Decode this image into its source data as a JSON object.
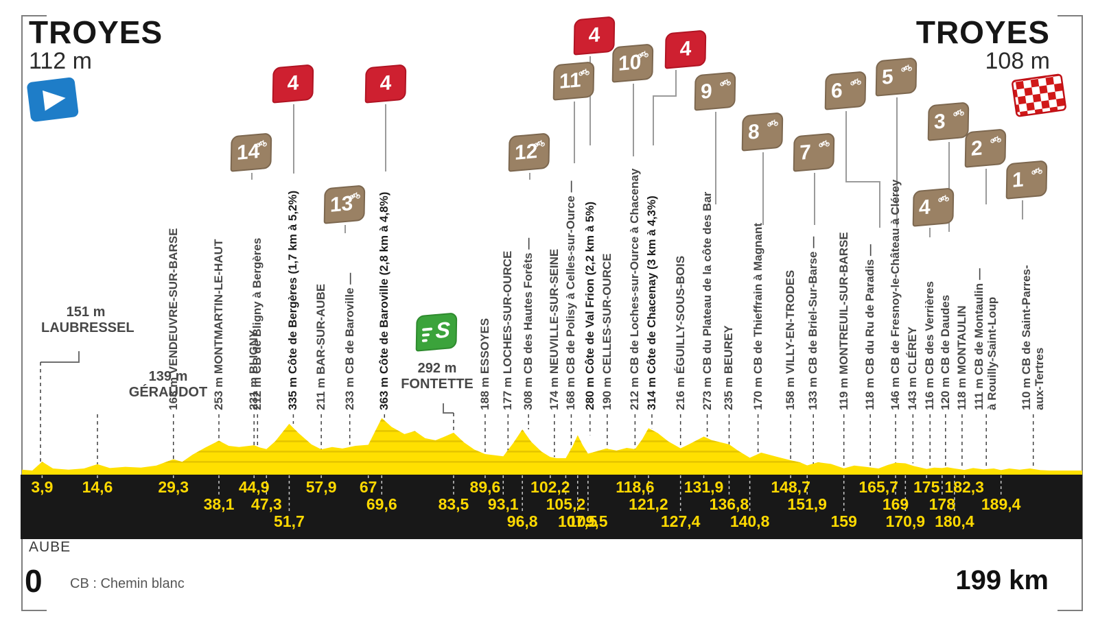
{
  "header": {
    "start": {
      "city": "TROYES",
      "altitude": "112 m"
    },
    "finish": {
      "city": "TROYES",
      "altitude": "108 m"
    }
  },
  "footer": {
    "department": "AUBE",
    "km_zero": "0",
    "legend": "CB : Chemin blanc",
    "distance_total": "199 km"
  },
  "colors": {
    "profile_yellow": "#ffe000",
    "profile_grid": "#e4c400",
    "band_black": "#181818",
    "band_number_yellow": "#ffd900",
    "sector_badge_brown": "#9a8164",
    "climb_badge_red": "#ce2030",
    "sprint_badge_green": "#3ba33b",
    "start_flag_blue": "#1e7dc8",
    "finish_flag_red": "#d01818",
    "label_grey": "#474747"
  },
  "chart_data": {
    "type": "area",
    "title": "Stage profile TROYES - TROYES",
    "x_unit": "km",
    "y_unit": "m",
    "x_range": [
      0,
      199
    ],
    "start": {
      "km": 0,
      "alt_m": 112
    },
    "finish": {
      "km": 199,
      "alt_m": 108
    },
    "waypoints": [
      {
        "km": 3.9,
        "km_label": "3,9",
        "alt": "151 m",
        "name": "LAUBRESSEL",
        "kind": "place",
        "row": 1,
        "orientation": "horizontal"
      },
      {
        "km": 14.6,
        "km_label": "14,6",
        "alt": "139 m",
        "name": "GÉRAUDOT",
        "kind": "place",
        "row": 1,
        "orientation": "horizontal"
      },
      {
        "km": 29.3,
        "km_label": "29,3",
        "alt": "163 m",
        "name": "VENDEUVRE-SUR-BARSE",
        "kind": "place",
        "row": 1
      },
      {
        "km": 38.1,
        "km_label": "38,1",
        "alt": "253 m",
        "name": "MONTMARTIN-LE-HAUT",
        "kind": "place",
        "row": 2
      },
      {
        "km": 44.9,
        "km_label": "44,9",
        "alt": "231 m",
        "name": "BLIGNY",
        "kind": "place",
        "row": 1
      },
      {
        "km": 47.3,
        "km_label": "47,3",
        "alt": "212 m",
        "name": "CB de Bligny à Bergères",
        "kind": "cb",
        "row": 2
      },
      {
        "km": 51.7,
        "km_label": "51,7",
        "alt": "335 m",
        "name": "Côte de Bergères (1,7 km à 5,2%)",
        "kind": "climb",
        "row": 3
      },
      {
        "km": 57.9,
        "km_label": "57,9",
        "alt": "211 m",
        "name": "BAR-SUR-AUBE",
        "kind": "place",
        "row": 1
      },
      {
        "km": 67,
        "km_label": "67",
        "alt": "233 m",
        "name": "CB de Baroville —",
        "kind": "cb",
        "row": 1
      },
      {
        "km": 69.6,
        "km_label": "69,6",
        "alt": "363 m",
        "name": "Côte de Baroville (2,8 km à 4,8%)",
        "kind": "climb",
        "row": 2
      },
      {
        "km": 83.5,
        "km_label": "83,5",
        "alt": "292 m",
        "name": "FONTETTE",
        "kind": "sprint",
        "row": 2,
        "orientation": "horizontal"
      },
      {
        "km": 89.6,
        "km_label": "89,6",
        "alt": "188 m",
        "name": "ESSOYES",
        "kind": "place",
        "row": 1
      },
      {
        "km": 93.1,
        "km_label": "93,1",
        "alt": "177 m",
        "name": "LOCHES-SUR-OURCE",
        "kind": "place",
        "row": 2
      },
      {
        "km": 96.8,
        "km_label": "96,8",
        "alt": "308 m",
        "name": "CB des Hautes Forêts —",
        "kind": "cb",
        "row": 3
      },
      {
        "km": 102.2,
        "km_label": "102,2",
        "alt": "174 m",
        "name": "NEUVILLE-SUR-SEINE",
        "kind": "place",
        "row": 1
      },
      {
        "km": 105.2,
        "km_label": "105,2",
        "alt": "168 m",
        "name": "CB de Polisy à Celles-sur-Ource —",
        "kind": "cb",
        "row": 2
      },
      {
        "km": 107.5,
        "km_label": "107,5",
        "alt": "280 m",
        "name": "Côte de Val Frion (2,2 km à 5%)",
        "kind": "climb",
        "row": 3
      },
      {
        "km": 109.5,
        "km_label": "109,5",
        "alt": "190 m",
        "name": "CELLES-SUR-OURCE",
        "kind": "place",
        "row": 3
      },
      {
        "km": 118.6,
        "km_label": "118,6",
        "alt": "212 m",
        "name": "CB de Loches-sur-Ource à Chacenay",
        "kind": "cb",
        "row": 1
      },
      {
        "km": 121.2,
        "km_label": "121,2",
        "alt": "314 m",
        "name": "Côte de Chacenay (3 km à 4,3%)",
        "kind": "climb",
        "row": 2
      },
      {
        "km": 127.4,
        "km_label": "127,4",
        "alt": "216 m",
        "name": "ÉGUILLY-SOUS-BOIS",
        "kind": "place",
        "row": 3
      },
      {
        "km": 131.9,
        "km_label": "131,9",
        "alt": "273 m",
        "name": "CB du Plateau de la côte des Bar",
        "kind": "cb",
        "row": 1
      },
      {
        "km": 136.8,
        "km_label": "136,8",
        "alt": "235 m",
        "name": "BEUREY",
        "kind": "place",
        "row": 2
      },
      {
        "km": 140.8,
        "km_label": "140,8",
        "alt": "170 m",
        "name": "CB de Thieffrain à Magnant",
        "kind": "cb",
        "row": 3
      },
      {
        "km": 148.7,
        "km_label": "148,7",
        "alt": "158 m",
        "name": "VILLY-EN-TRODES",
        "kind": "place",
        "row": 1
      },
      {
        "km": 151.9,
        "km_label": "151,9",
        "alt": "133 m",
        "name": "CB de Briel-Sur-Barse —",
        "kind": "cb",
        "row": 2
      },
      {
        "km": 159,
        "km_label": "159",
        "alt": "119 m",
        "name": "MONTREUIL-SUR-BARSE",
        "kind": "place",
        "row": 3
      },
      {
        "km": 165.7,
        "km_label": "165,7",
        "alt": "118 m",
        "name": "CB du Ru de Paradis —",
        "kind": "cb",
        "row": 1
      },
      {
        "km": 169,
        "km_label": "169",
        "alt": "146 m",
        "name": "CB de Fresnoy-le-Château à Clérey",
        "kind": "cb",
        "row": 2
      },
      {
        "km": 170.9,
        "km_label": "170,9",
        "alt": "143 m",
        "name": "CLÉREY",
        "kind": "place",
        "row": 3
      },
      {
        "km": 175,
        "km_label": "175",
        "alt": "116 m",
        "name": "CB des Verrières",
        "kind": "cb",
        "row": 1
      },
      {
        "km": 178,
        "km_label": "178",
        "alt": "120 m",
        "name": "CB de Daudes",
        "kind": "cb",
        "row": 2
      },
      {
        "km": 180.4,
        "km_label": "180,4",
        "alt": "118 m",
        "name": "MONTAULIN",
        "kind": "place",
        "row": 3
      },
      {
        "km": 182.3,
        "km_label": "182,3",
        "alt": "111 m",
        "name": "CB de Montaulin —",
        "name2": "à Rouilly-Saint-Loup",
        "kind": "cb",
        "row": 1
      },
      {
        "km": 189.4,
        "km_label": "189,4",
        "alt": "110 m",
        "name": "CB de Saint-Parres-",
        "name2": "aux-Tertres",
        "kind": "cb",
        "row": 2
      }
    ],
    "badges": {
      "sectors": [
        {
          "num": "14"
        },
        {
          "num": "13"
        },
        {
          "num": "12"
        },
        {
          "num": "11"
        },
        {
          "num": "10"
        },
        {
          "num": "9"
        },
        {
          "num": "8"
        },
        {
          "num": "7"
        },
        {
          "num": "6"
        },
        {
          "num": "5"
        },
        {
          "num": "4"
        },
        {
          "num": "3"
        },
        {
          "num": "2"
        },
        {
          "num": "1"
        }
      ],
      "climbs": [
        {
          "cat": "4"
        },
        {
          "cat": "4"
        },
        {
          "cat": "4"
        },
        {
          "cat": "4"
        }
      ],
      "sprint": {
        "letter": "S"
      }
    },
    "profile": [
      [
        0,
        112
      ],
      [
        2,
        108
      ],
      [
        3.9,
        151
      ],
      [
        6,
        118
      ],
      [
        9,
        112
      ],
      [
        12,
        118
      ],
      [
        14.6,
        139
      ],
      [
        17,
        120
      ],
      [
        20,
        126
      ],
      [
        23,
        122
      ],
      [
        26,
        132
      ],
      [
        29.3,
        163
      ],
      [
        31,
        150
      ],
      [
        33,
        185
      ],
      [
        35.5,
        220
      ],
      [
        38.1,
        253
      ],
      [
        40,
        228
      ],
      [
        42,
        222
      ],
      [
        44.9,
        231
      ],
      [
        46,
        220
      ],
      [
        47.3,
        212
      ],
      [
        49,
        250
      ],
      [
        51.7,
        335
      ],
      [
        53.5,
        290
      ],
      [
        56,
        235
      ],
      [
        57.9,
        211
      ],
      [
        60,
        222
      ],
      [
        62,
        215
      ],
      [
        64.5,
        228
      ],
      [
        67,
        233
      ],
      [
        69.6,
        363
      ],
      [
        71.5,
        320
      ],
      [
        74,
        285
      ],
      [
        76,
        300
      ],
      [
        78,
        265
      ],
      [
        80,
        255
      ],
      [
        81.5,
        270
      ],
      [
        83.5,
        292
      ],
      [
        85.5,
        245
      ],
      [
        87.5,
        210
      ],
      [
        89.6,
        188
      ],
      [
        91.5,
        182
      ],
      [
        93.1,
        177
      ],
      [
        95,
        240
      ],
      [
        96.8,
        308
      ],
      [
        98.5,
        248
      ],
      [
        100.5,
        200
      ],
      [
        102.2,
        174
      ],
      [
        103.5,
        168
      ],
      [
        105.2,
        168
      ],
      [
        106.5,
        225
      ],
      [
        107.5,
        280
      ],
      [
        108.5,
        230
      ],
      [
        109.5,
        190
      ],
      [
        111,
        200
      ],
      [
        113,
        215
      ],
      [
        115,
        205
      ],
      [
        117,
        218
      ],
      [
        118.6,
        212
      ],
      [
        120,
        260
      ],
      [
        121.2,
        314
      ],
      [
        123,
        290
      ],
      [
        125,
        250
      ],
      [
        127.4,
        216
      ],
      [
        129,
        235
      ],
      [
        131.9,
        273
      ],
      [
        133.5,
        255
      ],
      [
        136.8,
        235
      ],
      [
        138.5,
        205
      ],
      [
        140.8,
        170
      ],
      [
        143,
        195
      ],
      [
        146,
        175
      ],
      [
        148.7,
        158
      ],
      [
        150.5,
        148
      ],
      [
        151.9,
        133
      ],
      [
        154,
        148
      ],
      [
        156.5,
        140
      ],
      [
        159,
        119
      ],
      [
        161,
        132
      ],
      [
        163.5,
        125
      ],
      [
        165.7,
        118
      ],
      [
        167.5,
        135
      ],
      [
        169,
        146
      ],
      [
        170.9,
        143
      ],
      [
        172.5,
        130
      ],
      [
        175,
        116
      ],
      [
        176.5,
        122
      ],
      [
        178,
        120
      ],
      [
        179,
        124
      ],
      [
        180.4,
        118
      ],
      [
        182.3,
        111
      ],
      [
        184,
        120
      ],
      [
        186,
        114
      ],
      [
        188,
        118
      ],
      [
        189.4,
        110
      ],
      [
        191,
        118
      ],
      [
        193,
        112
      ],
      [
        195,
        118
      ],
      [
        197,
        110
      ],
      [
        199,
        108
      ]
    ]
  }
}
